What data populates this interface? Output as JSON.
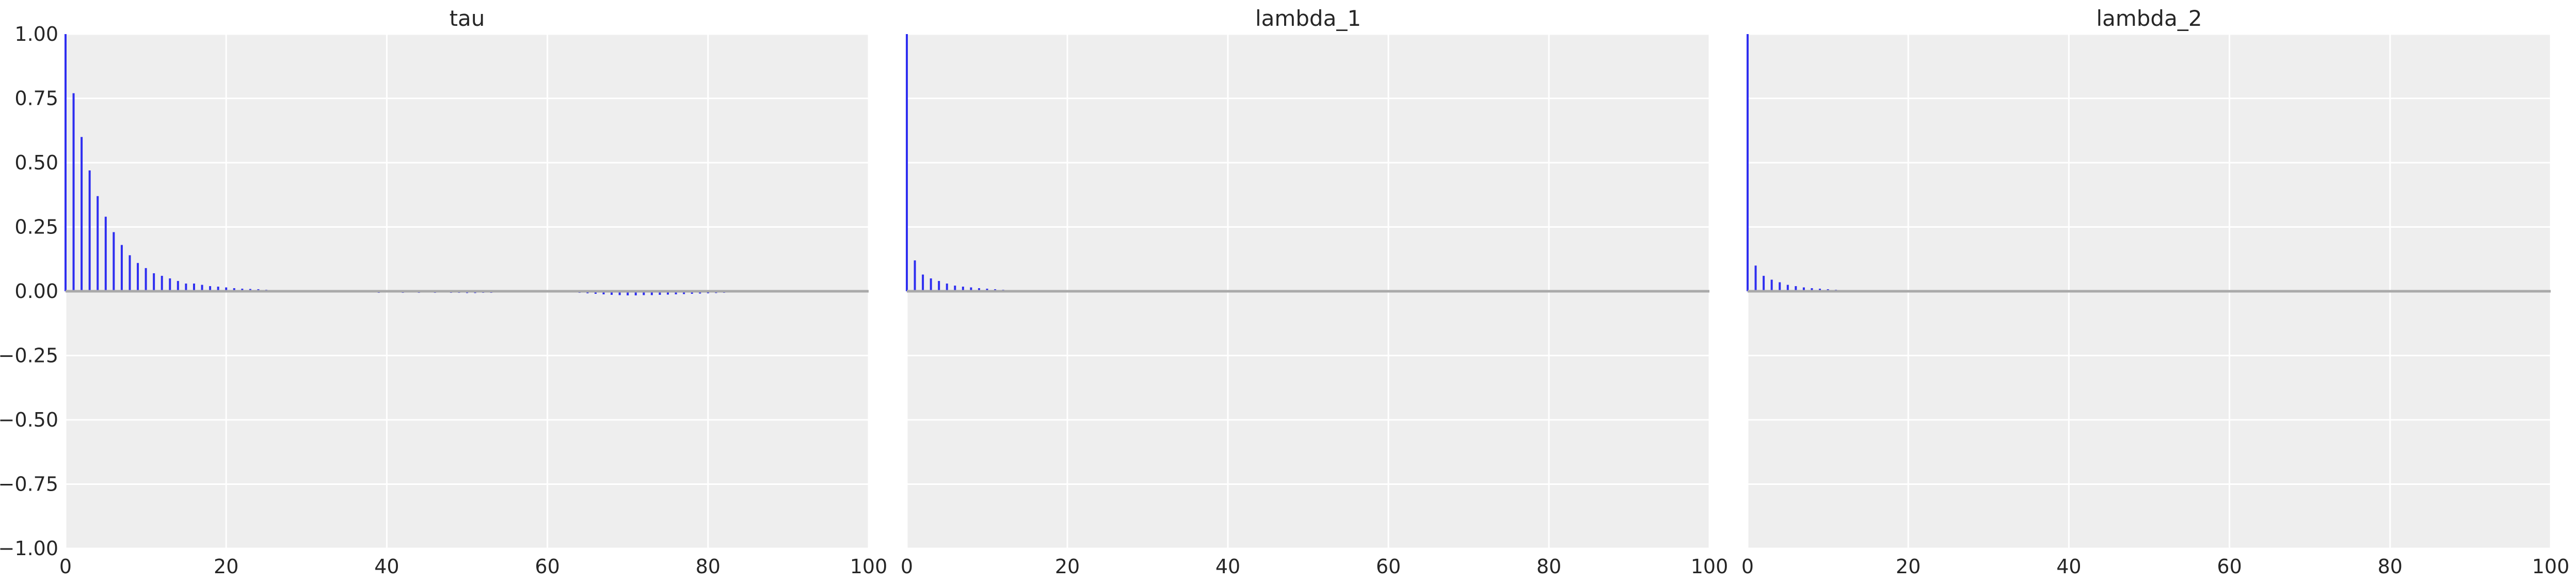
{
  "style": {
    "panel_background": "#eeeeee",
    "grid_color": "#ffffff",
    "bar_color": "#2e2ef0",
    "zero_line_color": "#a9a9a9",
    "text_color": "#262626"
  },
  "chart_data": [
    {
      "type": "bar",
      "title": "tau",
      "xlim": [
        0,
        100
      ],
      "ylim": [
        -1,
        1
      ],
      "xticks": [
        0,
        20,
        40,
        60,
        80,
        100
      ],
      "yticks": [
        -1.0,
        -0.75,
        -0.5,
        -0.25,
        0.0,
        0.25,
        0.5,
        0.75,
        1.0
      ],
      "ytick_labels": [
        "−1.00",
        "−0.75",
        "−0.50",
        "−0.25",
        "0.00",
        "0.25",
        "0.50",
        "0.75",
        "1.00"
      ],
      "grid": true,
      "x": [
        0,
        1,
        2,
        3,
        4,
        5,
        6,
        7,
        8,
        9,
        10,
        11,
        12,
        13,
        14,
        15,
        16,
        17,
        18,
        19,
        20,
        21,
        22,
        23,
        24,
        25,
        26,
        27,
        28,
        29,
        30,
        31,
        32,
        33,
        34,
        35,
        36,
        37,
        38,
        39,
        40,
        41,
        42,
        43,
        44,
        45,
        46,
        47,
        48,
        49,
        50,
        51,
        52,
        53,
        54,
        55,
        56,
        57,
        58,
        59,
        60,
        61,
        62,
        63,
        64,
        65,
        66,
        67,
        68,
        69,
        70,
        71,
        72,
        73,
        74,
        75,
        76,
        77,
        78,
        79,
        80,
        81,
        82,
        83,
        84,
        85,
        86,
        87,
        88,
        89,
        90,
        91,
        92,
        93,
        94,
        95,
        96,
        97,
        98,
        99
      ],
      "values": [
        1.0,
        0.77,
        0.6,
        0.47,
        0.37,
        0.29,
        0.23,
        0.18,
        0.14,
        0.11,
        0.09,
        0.07,
        0.06,
        0.05,
        0.04,
        0.03,
        0.03,
        0.025,
        0.02,
        0.018,
        0.015,
        0.012,
        0.01,
        0.009,
        0.008,
        0.006,
        0.005,
        0.004,
        0.003,
        0.002,
        0.001,
        0.0,
        -0.002,
        -0.003,
        -0.004,
        -0.004,
        -0.005,
        -0.005,
        -0.005,
        -0.006,
        -0.005,
        -0.005,
        -0.006,
        -0.005,
        -0.006,
        -0.005,
        -0.006,
        -0.005,
        -0.006,
        -0.006,
        -0.007,
        -0.007,
        -0.006,
        -0.006,
        -0.005,
        -0.005,
        -0.004,
        -0.004,
        -0.004,
        -0.004,
        -0.004,
        -0.004,
        -0.004,
        -0.005,
        -0.006,
        -0.008,
        -0.01,
        -0.012,
        -0.014,
        -0.015,
        -0.016,
        -0.016,
        -0.015,
        -0.015,
        -0.014,
        -0.013,
        -0.012,
        -0.011,
        -0.01,
        -0.009,
        -0.008,
        -0.007,
        -0.006,
        -0.005,
        -0.005,
        -0.004,
        -0.004,
        -0.003,
        -0.003,
        -0.002,
        -0.002,
        -0.002,
        -0.001,
        -0.001,
        -0.001,
        -0.001,
        0.0,
        0.0,
        0.0,
        0.0
      ]
    },
    {
      "type": "bar",
      "title": "lambda_1",
      "xlim": [
        0,
        100
      ],
      "ylim": [
        -1,
        1
      ],
      "xticks": [
        0,
        20,
        40,
        60,
        80,
        100
      ],
      "grid": true,
      "x": [
        0,
        1,
        2,
        3,
        4,
        5,
        6,
        7,
        8,
        9,
        10,
        11,
        12,
        13,
        14,
        15,
        16,
        17,
        18,
        19,
        20,
        21,
        22,
        23,
        24,
        25,
        26,
        27,
        28,
        29,
        30,
        31,
        32,
        33,
        34,
        35,
        36,
        37,
        38,
        39,
        40,
        41,
        42,
        43,
        44,
        45,
        46,
        47,
        48,
        49,
        50,
        51,
        52,
        53,
        54,
        55,
        56,
        57,
        58,
        59,
        60,
        61,
        62,
        63,
        64,
        65,
        66,
        67,
        68,
        69,
        70,
        71,
        72,
        73,
        74,
        75,
        76,
        77,
        78,
        79,
        80,
        81,
        82,
        83,
        84,
        85,
        86,
        87,
        88,
        89,
        90,
        91,
        92,
        93,
        94,
        95,
        96,
        97,
        98,
        99
      ],
      "values": [
        1.0,
        0.12,
        0.065,
        0.05,
        0.04,
        0.03,
        0.022,
        0.018,
        0.015,
        0.012,
        0.01,
        0.008,
        0.006,
        0.005,
        0.004,
        0.003,
        0.003,
        0.002,
        0.002,
        0.002,
        0.001,
        0.002,
        0.001,
        0.001,
        0.0,
        0.001,
        0.002,
        0.001,
        0.0,
        -0.001,
        0.001,
        0.0,
        -0.002,
        0.001,
        -0.004,
        0.0,
        0.001,
        -0.001,
        0.002,
        0.0,
        -0.001,
        0.001,
        0.0,
        -0.002,
        0.001,
        0.0,
        -0.001,
        0.002,
        -0.001,
        -0.003,
        0.0,
        0.001,
        -0.001,
        0.002,
        0.0,
        -0.001,
        0.001,
        0.0,
        -0.002,
        0.001,
        0.0,
        -0.001,
        0.002,
        0.0,
        -0.001,
        0.001,
        0.0,
        -0.001,
        0.002,
        0.0,
        -0.001,
        0.001,
        0.0,
        -0.001,
        0.001,
        0.0,
        -0.001,
        0.002,
        0.0,
        -0.001,
        0.001,
        -0.002,
        0.0,
        0.001,
        -0.001,
        0.0,
        0.001,
        -0.001,
        0.0,
        0.002,
        -0.001,
        0.0,
        0.001,
        -0.001,
        0.0,
        0.001,
        -0.002,
        0.0,
        0.001,
        0.0
      ]
    },
    {
      "type": "bar",
      "title": "lambda_2",
      "xlim": [
        0,
        100
      ],
      "ylim": [
        -1,
        1
      ],
      "xticks": [
        0,
        20,
        40,
        60,
        80,
        100
      ],
      "grid": true,
      "x": [
        0,
        1,
        2,
        3,
        4,
        5,
        6,
        7,
        8,
        9,
        10,
        11,
        12,
        13,
        14,
        15,
        16,
        17,
        18,
        19,
        20,
        21,
        22,
        23,
        24,
        25,
        26,
        27,
        28,
        29,
        30,
        31,
        32,
        33,
        34,
        35,
        36,
        37,
        38,
        39,
        40,
        41,
        42,
        43,
        44,
        45,
        46,
        47,
        48,
        49,
        50,
        51,
        52,
        53,
        54,
        55,
        56,
        57,
        58,
        59,
        60,
        61,
        62,
        63,
        64,
        65,
        66,
        67,
        68,
        69,
        70,
        71,
        72,
        73,
        74,
        75,
        76,
        77,
        78,
        79,
        80,
        81,
        82,
        83,
        84,
        85,
        86,
        87,
        88,
        89,
        90,
        91,
        92,
        93,
        94,
        95,
        96,
        97,
        98,
        99
      ],
      "values": [
        1.0,
        0.1,
        0.06,
        0.045,
        0.035,
        0.025,
        0.02,
        0.015,
        0.012,
        0.01,
        0.008,
        0.006,
        0.005,
        0.004,
        0.003,
        0.003,
        0.002,
        0.002,
        0.002,
        0.001,
        0.002,
        0.001,
        0.0,
        0.001,
        0.002,
        0.001,
        0.0,
        -0.001,
        0.001,
        0.002,
        0.0,
        -0.001,
        0.001,
        0.0,
        0.001,
        -0.001,
        0.002,
        0.0,
        0.001,
        -0.001,
        0.0,
        0.001,
        0.0,
        -0.001,
        0.001,
        0.002,
        0.0,
        -0.001,
        0.001,
        0.0,
        0.001,
        -0.001,
        0.0,
        0.001,
        0.002,
        0.0,
        -0.001,
        0.001,
        0.0,
        0.001,
        -0.002,
        0.0,
        0.001,
        -0.001,
        0.0,
        0.001,
        0.002,
        0.0,
        -0.001,
        0.001,
        0.0,
        -0.001,
        0.001,
        0.0,
        0.001,
        -0.001,
        0.0,
        0.001,
        0.002,
        0.0,
        -0.001,
        0.001,
        0.0,
        -0.001,
        0.001,
        0.0,
        0.001,
        -0.001,
        0.0,
        0.001,
        0.0,
        -0.001,
        0.001,
        0.002,
        0.0,
        -0.001,
        0.001,
        0.0,
        0.001,
        0.0
      ]
    }
  ]
}
